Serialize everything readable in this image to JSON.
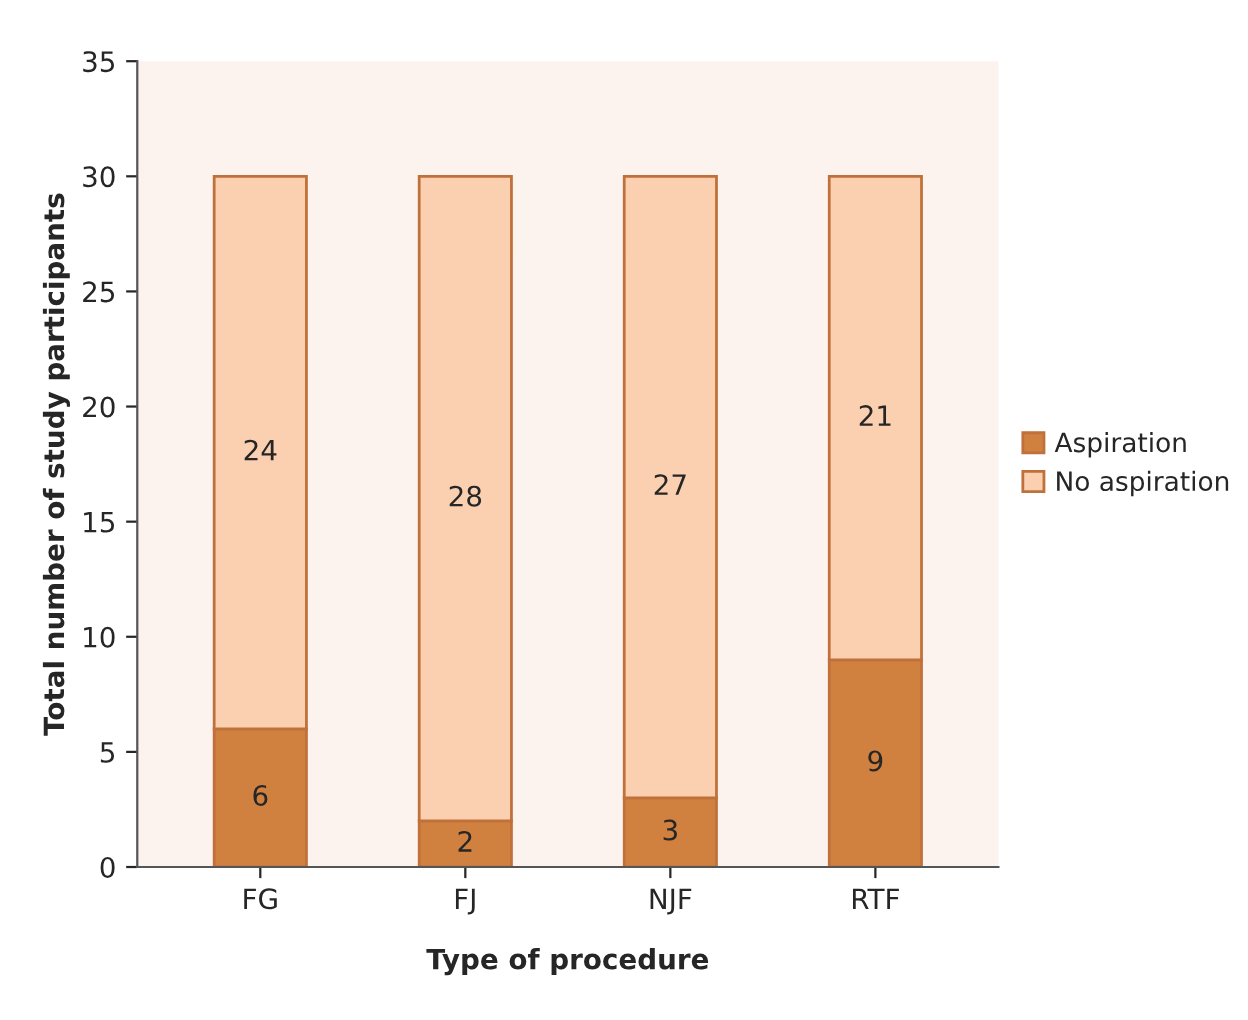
{
  "chart_data": {
    "type": "bar",
    "stacked": true,
    "xlabel": "Type of procedure",
    "ylabel": "Total number of study participants",
    "categories": [
      "FG",
      "FJ",
      "NJF",
      "RTF"
    ],
    "series": [
      {
        "name": "Aspiration",
        "color": "#d0803f",
        "values": [
          6,
          2,
          3,
          9
        ]
      },
      {
        "name": "No aspiration",
        "color": "#fbd0b0",
        "values": [
          24,
          28,
          27,
          21
        ]
      }
    ],
    "ylim": [
      0,
      35
    ],
    "yticks": [
      0,
      5,
      10,
      15,
      20,
      25,
      30,
      35
    ],
    "grid": false,
    "legend": "right",
    "data_labels": true
  }
}
